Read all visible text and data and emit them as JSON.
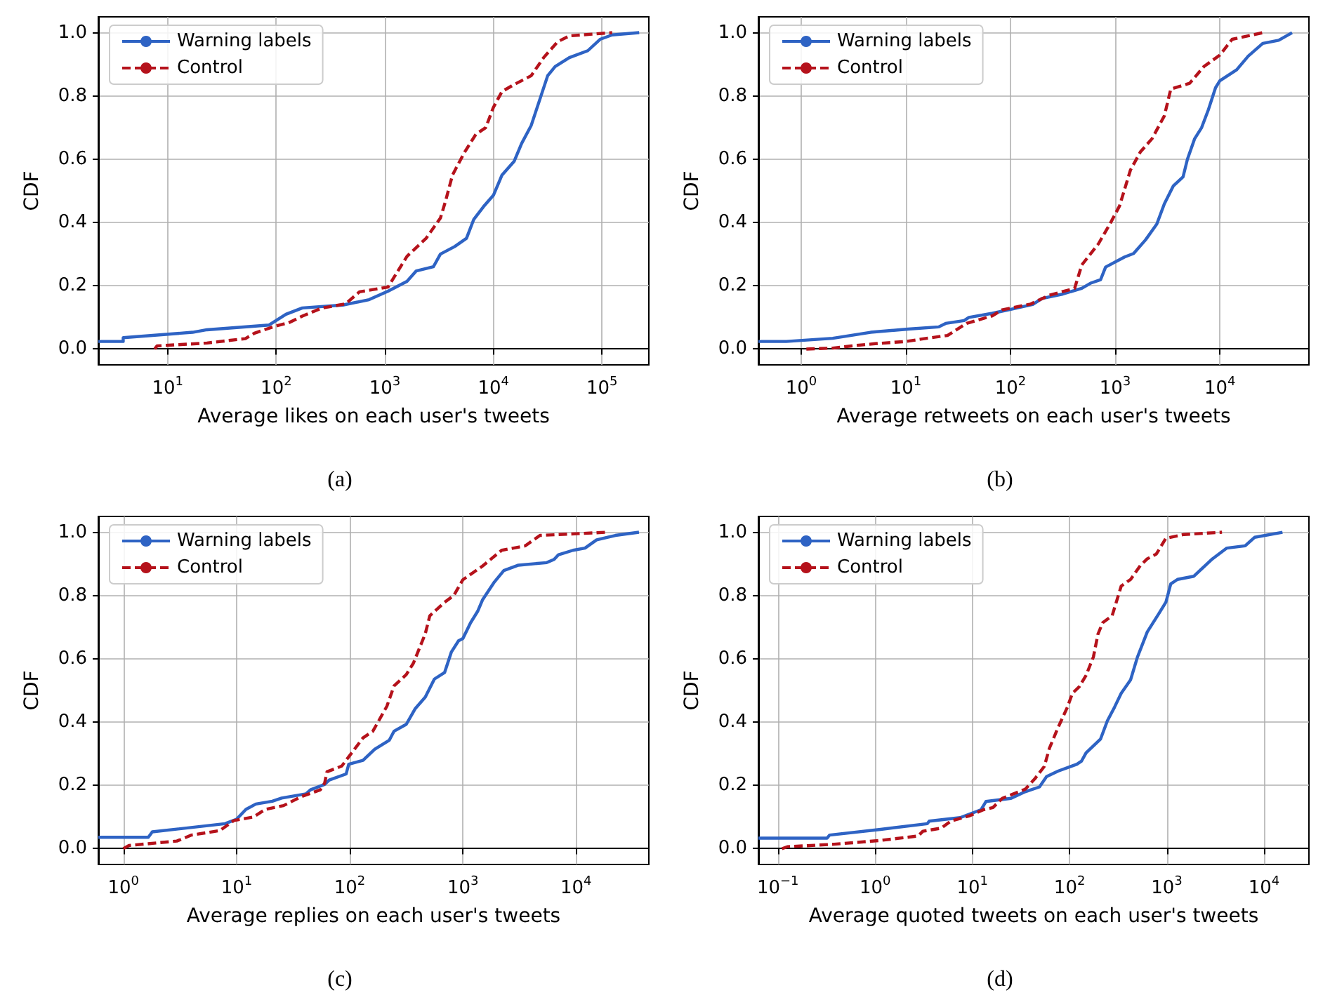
{
  "chart_data": [
    {
      "type": "line",
      "xlabel": "Average likes on each user's tweets",
      "ylabel": "CDF",
      "annotations": [
        "(a)"
      ],
      "log": "x",
      "grid": true,
      "legend": "top left",
      "xlim": [
        2.3,
        270000
      ],
      "xticks": [
        {
          "value": 10,
          "label": "10$^{1}$"
        },
        {
          "value": 100,
          "label": "10$^{2}$"
        },
        {
          "value": 1000,
          "label": "10$^{3}$"
        },
        {
          "value": 10000,
          "label": "10$^{4}$"
        },
        {
          "value": 100000,
          "label": "10$^{5}$"
        }
      ],
      "ylim": [
        -0.05,
        1.05
      ],
      "yticks": [
        {
          "value": 0,
          "label": "0.0"
        },
        {
          "value": 0.2,
          "label": "0.2"
        },
        {
          "value": 0.4,
          "label": "0.4"
        },
        {
          "value": 0.6,
          "label": "0.6"
        },
        {
          "value": 0.8,
          "label": "0.8"
        },
        {
          "value": 1,
          "label": "1.0"
        }
      ],
      "series": [
        {
          "name": "Warning labels",
          "color": "#2e63c4",
          "line_style": "solid",
          "x": [
            2.3,
            3.9,
            3.9,
            17,
            23,
            86,
            123,
            174,
            410,
            716,
            1070,
            1600,
            1950,
            2800,
            3250,
            4400,
            5650,
            6600,
            8100,
            10000,
            12000,
            15500,
            18200,
            22300,
            27000,
            31600,
            37000,
            50000,
            74000,
            96000,
            124000,
            220000
          ],
          "values": [
            0.024,
            0.024,
            0.036,
            0.053,
            0.061,
            0.076,
            0.11,
            0.13,
            0.139,
            0.156,
            0.183,
            0.214,
            0.247,
            0.26,
            0.3,
            0.324,
            0.35,
            0.41,
            0.45,
            0.486,
            0.55,
            0.593,
            0.65,
            0.707,
            0.793,
            0.864,
            0.893,
            0.921,
            0.943,
            0.979,
            0.993,
            1.0
          ]
        },
        {
          "name": "Control",
          "color": "#b5121b",
          "line_style": "dashed",
          "x": [
            7.6,
            8,
            23,
            52,
            63,
            95,
            130,
            174,
            260,
            435,
            585,
            1070,
            1600,
            2400,
            3250,
            3600,
            4200,
            5400,
            6900,
            8500,
            10000,
            12000,
            15500,
            22300,
            29000,
            39000,
            50000,
            124000
          ],
          "values": [
            0,
            0.01,
            0.019,
            0.033,
            0.05,
            0.071,
            0.083,
            0.104,
            0.129,
            0.143,
            0.181,
            0.196,
            0.293,
            0.35,
            0.414,
            0.464,
            0.55,
            0.621,
            0.679,
            0.7,
            0.764,
            0.814,
            0.836,
            0.864,
            0.921,
            0.971,
            0.99,
            1.0
          ]
        }
      ]
    },
    {
      "type": "line",
      "xlabel": "Average retweets on each user's tweets",
      "ylabel": "CDF",
      "annotations": [
        "(b)"
      ],
      "log": "x",
      "grid": true,
      "legend": "top left",
      "xlim": [
        0.39,
        71000
      ],
      "xticks": [
        {
          "value": 1,
          "label": "10$^{0}$"
        },
        {
          "value": 10,
          "label": "10$^{1}$"
        },
        {
          "value": 100,
          "label": "10$^{2}$"
        },
        {
          "value": 1000,
          "label": "10$^{3}$"
        },
        {
          "value": 10000,
          "label": "10$^{4}$"
        }
      ],
      "ylim": [
        -0.05,
        1.05
      ],
      "yticks": [
        {
          "value": 0,
          "label": "0.0"
        },
        {
          "value": 0.2,
          "label": "0.2"
        },
        {
          "value": 0.4,
          "label": "0.4"
        },
        {
          "value": 0.6,
          "label": "0.6"
        },
        {
          "value": 0.8,
          "label": "0.8"
        },
        {
          "value": 1,
          "label": "1.0"
        }
      ],
      "series": [
        {
          "name": "Warning labels",
          "color": "#2e63c4",
          "line_style": "solid",
          "x": [
            0.39,
            0.72,
            2.0,
            4.6,
            10.5,
            20.6,
            24,
            36,
            40,
            67,
            106,
            163,
            200,
            317,
            480,
            590,
            725,
            810,
            1230,
            1500,
            1950,
            2500,
            2950,
            3600,
            4450,
            4900,
            5750,
            6700,
            7800,
            9100,
            10000,
            14500,
            18700,
            25700,
            36500,
            49000
          ],
          "values": [
            0.024,
            0.024,
            0.034,
            0.053,
            0.063,
            0.07,
            0.081,
            0.09,
            0.1,
            0.113,
            0.127,
            0.141,
            0.16,
            0.174,
            0.192,
            0.209,
            0.219,
            0.259,
            0.291,
            0.302,
            0.345,
            0.395,
            0.459,
            0.516,
            0.544,
            0.6,
            0.665,
            0.7,
            0.758,
            0.826,
            0.848,
            0.883,
            0.926,
            0.966,
            0.976,
            1.0
          ]
        },
        {
          "name": "Control",
          "color": "#b5121b",
          "line_style": "dashed",
          "x": [
            1.12,
            2.0,
            3.05,
            5.1,
            10,
            15.8,
            25,
            38,
            67,
            83,
            155,
            235,
            410,
            480,
            690,
            890,
            1100,
            1400,
            1740,
            2250,
            2950,
            3400,
            5150,
            7050,
            10000,
            13100,
            25700
          ],
          "values": [
            0,
            0.003,
            0.01,
            0.017,
            0.024,
            0.034,
            0.043,
            0.081,
            0.105,
            0.124,
            0.142,
            0.17,
            0.192,
            0.266,
            0.332,
            0.395,
            0.452,
            0.566,
            0.623,
            0.665,
            0.737,
            0.822,
            0.84,
            0.893,
            0.929,
            0.979,
            1.0
          ]
        }
      ]
    },
    {
      "type": "line",
      "xlabel": "Average replies on each user's tweets",
      "ylabel": "CDF",
      "annotations": [
        "(c)"
      ],
      "log": "x",
      "grid": true,
      "legend": "top left",
      "xlim": [
        0.6,
        44000
      ],
      "xticks": [
        {
          "value": 1,
          "label": "10$^{0}$"
        },
        {
          "value": 10,
          "label": "10$^{1}$"
        },
        {
          "value": 100,
          "label": "10$^{2}$"
        },
        {
          "value": 1000,
          "label": "10$^{3}$"
        },
        {
          "value": 10000,
          "label": "10$^{4}$"
        }
      ],
      "ylim": [
        -0.05,
        1.05
      ],
      "yticks": [
        {
          "value": 0,
          "label": "0.0"
        },
        {
          "value": 0.2,
          "label": "0.2"
        },
        {
          "value": 0.4,
          "label": "0.4"
        },
        {
          "value": 0.6,
          "label": "0.6"
        },
        {
          "value": 0.8,
          "label": "0.8"
        },
        {
          "value": 1,
          "label": "1.0"
        }
      ],
      "series": [
        {
          "name": "Warning labels",
          "color": "#2e63c4",
          "line_style": "solid",
          "x": [
            0.6,
            1.66,
            1.8,
            7.9,
            10,
            12.1,
            14.8,
            20.7,
            25,
            41,
            45,
            60,
            66,
            93,
            98,
            131,
            166,
            224,
            246,
            316,
            380,
            465,
            560,
            690,
            790,
            915,
            1000,
            1170,
            1350,
            1490,
            1900,
            2300,
            3100,
            5500,
            6400,
            7000,
            9400,
            12000,
            15200,
            22300,
            36000
          ],
          "values": [
            0.036,
            0.036,
            0.053,
            0.079,
            0.093,
            0.124,
            0.141,
            0.15,
            0.16,
            0.173,
            0.186,
            0.203,
            0.217,
            0.236,
            0.267,
            0.279,
            0.314,
            0.343,
            0.371,
            0.393,
            0.443,
            0.479,
            0.536,
            0.557,
            0.621,
            0.657,
            0.664,
            0.714,
            0.75,
            0.786,
            0.843,
            0.879,
            0.896,
            0.904,
            0.914,
            0.929,
            0.943,
            0.95,
            0.976,
            0.99,
            1.0
          ]
        },
        {
          "name": "Control",
          "color": "#b5121b",
          "line_style": "dashed",
          "x": [
            1.0,
            1.12,
            2.97,
            4.0,
            7.1,
            9.5,
            14.1,
            17.9,
            26,
            37,
            55,
            60,
            63,
            85,
            131,
            160,
            213,
            246,
            316,
            365,
            465,
            510,
            690,
            830,
            1000,
            1490,
            2200,
            3550,
            4800,
            18600
          ],
          "values": [
            0,
            0.01,
            0.024,
            0.043,
            0.057,
            0.089,
            0.1,
            0.124,
            0.136,
            0.164,
            0.186,
            0.207,
            0.243,
            0.261,
            0.35,
            0.371,
            0.45,
            0.514,
            0.55,
            0.586,
            0.679,
            0.736,
            0.779,
            0.8,
            0.85,
            0.893,
            0.943,
            0.957,
            0.99,
            1.0
          ]
        }
      ]
    },
    {
      "type": "line",
      "xlabel": "Average quoted tweets on each user's tweets",
      "ylabel": "CDF",
      "annotations": [
        "(d)"
      ],
      "log": "x",
      "grid": true,
      "legend": "top left",
      "xlim": [
        0.063,
        29000
      ],
      "xticks": [
        {
          "value": 0.1,
          "label": "10$^{−1}$"
        },
        {
          "value": 1,
          "label": "10$^{0}$"
        },
        {
          "value": 10,
          "label": "10$^{1}$"
        },
        {
          "value": 100,
          "label": "10$^{2}$"
        },
        {
          "value": 1000,
          "label": "10$^{3}$"
        },
        {
          "value": 10000,
          "label": "10$^{4}$"
        }
      ],
      "ylim": [
        -0.05,
        1.05
      ],
      "yticks": [
        {
          "value": 0,
          "label": "0.0"
        },
        {
          "value": 0.2,
          "label": "0.2"
        },
        {
          "value": 0.4,
          "label": "0.4"
        },
        {
          "value": 0.6,
          "label": "0.6"
        },
        {
          "value": 0.8,
          "label": "0.8"
        },
        {
          "value": 1,
          "label": "1.0"
        }
      ],
      "series": [
        {
          "name": "Warning labels",
          "color": "#2e63c4",
          "line_style": "solid",
          "x": [
            0.063,
            0.32,
            0.34,
            1.14,
            3.45,
            3.6,
            7.5,
            12.3,
            13.8,
            25,
            35,
            49,
            58,
            76,
            119,
            133,
            148,
            208,
            245,
            290,
            340,
            425,
            500,
            630,
            830,
            980,
            1100,
            1290,
            1900,
            2950,
            4150,
            6400,
            8000,
            15500
          ],
          "values": [
            0.033,
            0.033,
            0.043,
            0.061,
            0.079,
            0.087,
            0.098,
            0.123,
            0.149,
            0.159,
            0.18,
            0.195,
            0.228,
            0.245,
            0.267,
            0.277,
            0.303,
            0.346,
            0.404,
            0.447,
            0.491,
            0.534,
            0.606,
            0.685,
            0.743,
            0.779,
            0.837,
            0.851,
            0.861,
            0.916,
            0.95,
            0.957,
            0.984,
            1.0
          ]
        },
        {
          "name": "Control",
          "color": "#b5121b",
          "line_style": "dashed",
          "x": [
            0.11,
            0.125,
            0.38,
            1.14,
            2.77,
            3.1,
            4.8,
            6.0,
            9.4,
            13,
            16.3,
            20.3,
            35,
            44,
            55,
            62,
            76,
            95,
            107,
            126,
            148,
            176,
            196,
            219,
            274,
            340,
            425,
            535,
            630,
            780,
            980,
            1500,
            3700
          ],
          "values": [
            0,
            0.006,
            0.014,
            0.026,
            0.04,
            0.055,
            0.065,
            0.087,
            0.104,
            0.123,
            0.13,
            0.159,
            0.188,
            0.221,
            0.26,
            0.317,
            0.382,
            0.447,
            0.491,
            0.512,
            0.548,
            0.606,
            0.678,
            0.714,
            0.736,
            0.83,
            0.851,
            0.895,
            0.916,
            0.931,
            0.981,
            0.993,
            1.0
          ]
        }
      ]
    }
  ]
}
